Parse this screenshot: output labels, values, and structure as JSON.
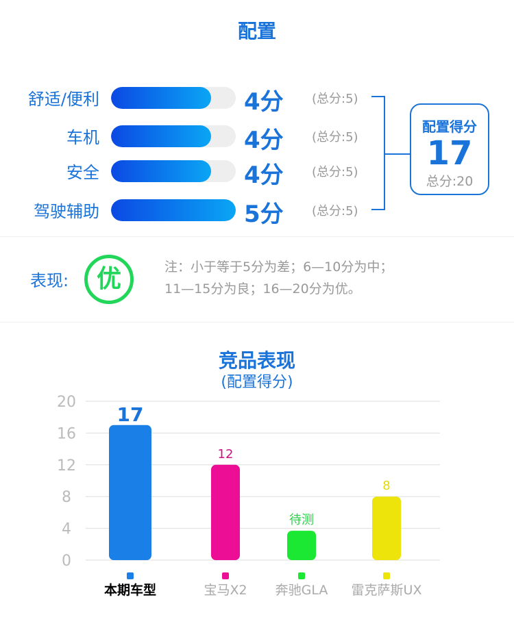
{
  "config": {
    "title": "配置",
    "rows": [
      {
        "label": "舒适/便利",
        "score": 4,
        "score_text": "4分",
        "total_text": "(总分:5)"
      },
      {
        "label": "车机",
        "score": 4,
        "score_text": "4分",
        "total_text": "(总分:5)"
      },
      {
        "label": "安全",
        "score": 4,
        "score_text": "4分",
        "total_text": "(总分:5)"
      },
      {
        "label": "驾驶辅助",
        "score": 5,
        "score_text": "5分",
        "total_text": "(总分:5)"
      }
    ],
    "max_score": 5,
    "summary": {
      "label": "配置得分",
      "value": "17",
      "total": "总分:20"
    }
  },
  "performance": {
    "label": "表现:",
    "badge": "优",
    "note_line1": "注：小于等于5分为差；6—10分为中；",
    "note_line2": "11—15分为良；16—20分为优。"
  },
  "chart_data": {
    "type": "bar",
    "title": "竞品表现",
    "subtitle": "(配置得分)",
    "categories": [
      "本期车型",
      "宝马X2",
      "奔驰GLA",
      "雷克萨斯UX"
    ],
    "values": [
      17,
      12,
      null,
      8
    ],
    "data_labels": [
      "17",
      "12",
      "待测",
      "8"
    ],
    "pending_placeholder_value": 3.7,
    "colors": [
      "#1a80e8",
      "#ec0f96",
      "#1ae833",
      "#ece40a"
    ],
    "label_colors": [
      "#1a73d9",
      "#c8147f",
      "#2bd24a",
      "#e3d80a"
    ],
    "y_ticks": [
      "0",
      "4",
      "8",
      "12",
      "16",
      "20"
    ],
    "ylim": [
      0,
      20
    ],
    "grid": true
  },
  "colors": {
    "accent": "#1a73d9",
    "green": "#22d65a",
    "muted": "#999999"
  }
}
